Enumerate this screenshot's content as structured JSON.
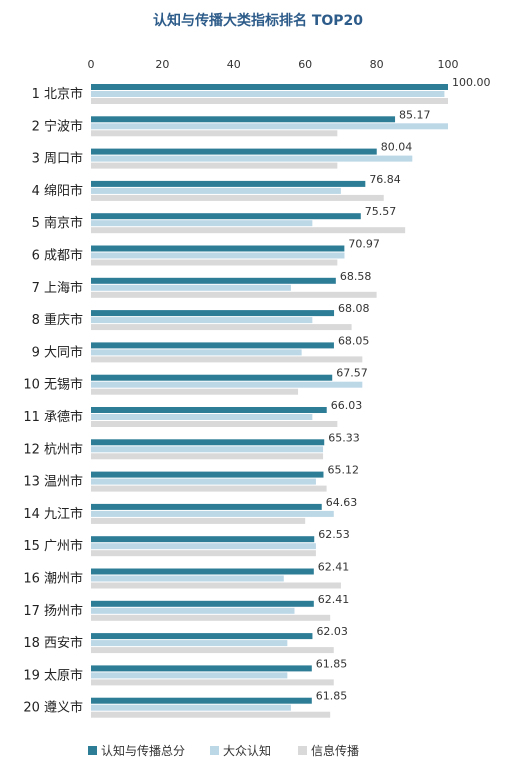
{
  "chart_data": {
    "type": "bar",
    "orientation": "horizontal",
    "title": "认知与传播大类指标排名 TOP20",
    "xlim": [
      0,
      100
    ],
    "xticks": [
      "0",
      "20",
      "40",
      "60",
      "80",
      "100"
    ],
    "grid": false,
    "legend_position": "bottom",
    "categories": [
      "1 北京市",
      "2 宁波市",
      "3 周口市",
      "4 绵阳市",
      "5 南京市",
      "6 成都市",
      "7 上海市",
      "8 重庆市",
      "9 大同市",
      "10 无锡市",
      "11 承德市",
      "12 杭州市",
      "13 温州市",
      "14 九江市",
      "15 广州市",
      "16 潮州市",
      "17 扬州市",
      "18 西安市",
      "19 太原市",
      "20 遵义市"
    ],
    "series": [
      {
        "name": "认知与传播总分",
        "color": "#2e7d97",
        "labeled": true,
        "values": [
          100.0,
          85.17,
          80.04,
          76.84,
          75.57,
          70.97,
          68.58,
          68.08,
          68.05,
          67.57,
          66.03,
          65.33,
          65.12,
          64.63,
          62.53,
          62.41,
          62.41,
          62.03,
          61.85,
          61.85
        ],
        "labels": [
          "100.00",
          "85.17",
          "80.04",
          "76.84",
          "75.57",
          "70.97",
          "68.58",
          "68.08",
          "68.05",
          "67.57",
          "66.03",
          "65.33",
          "65.12",
          "64.63",
          "62.53",
          "62.41",
          "62.41",
          "62.03",
          "61.85",
          "61.85"
        ]
      },
      {
        "name": "大众认知",
        "color": "#bcd7e6",
        "labeled": false,
        "values": [
          99,
          100,
          90,
          70,
          62,
          71,
          56,
          62,
          59,
          76,
          62,
          65,
          63,
          68,
          63,
          54,
          57,
          55,
          55,
          56
        ]
      },
      {
        "name": "信息传播",
        "color": "#d9d9d9",
        "labeled": false,
        "values": [
          100,
          69,
          69,
          82,
          88,
          69,
          80,
          73,
          76,
          58,
          69,
          65,
          66,
          60,
          63,
          70,
          67,
          68,
          68,
          67
        ]
      }
    ]
  }
}
